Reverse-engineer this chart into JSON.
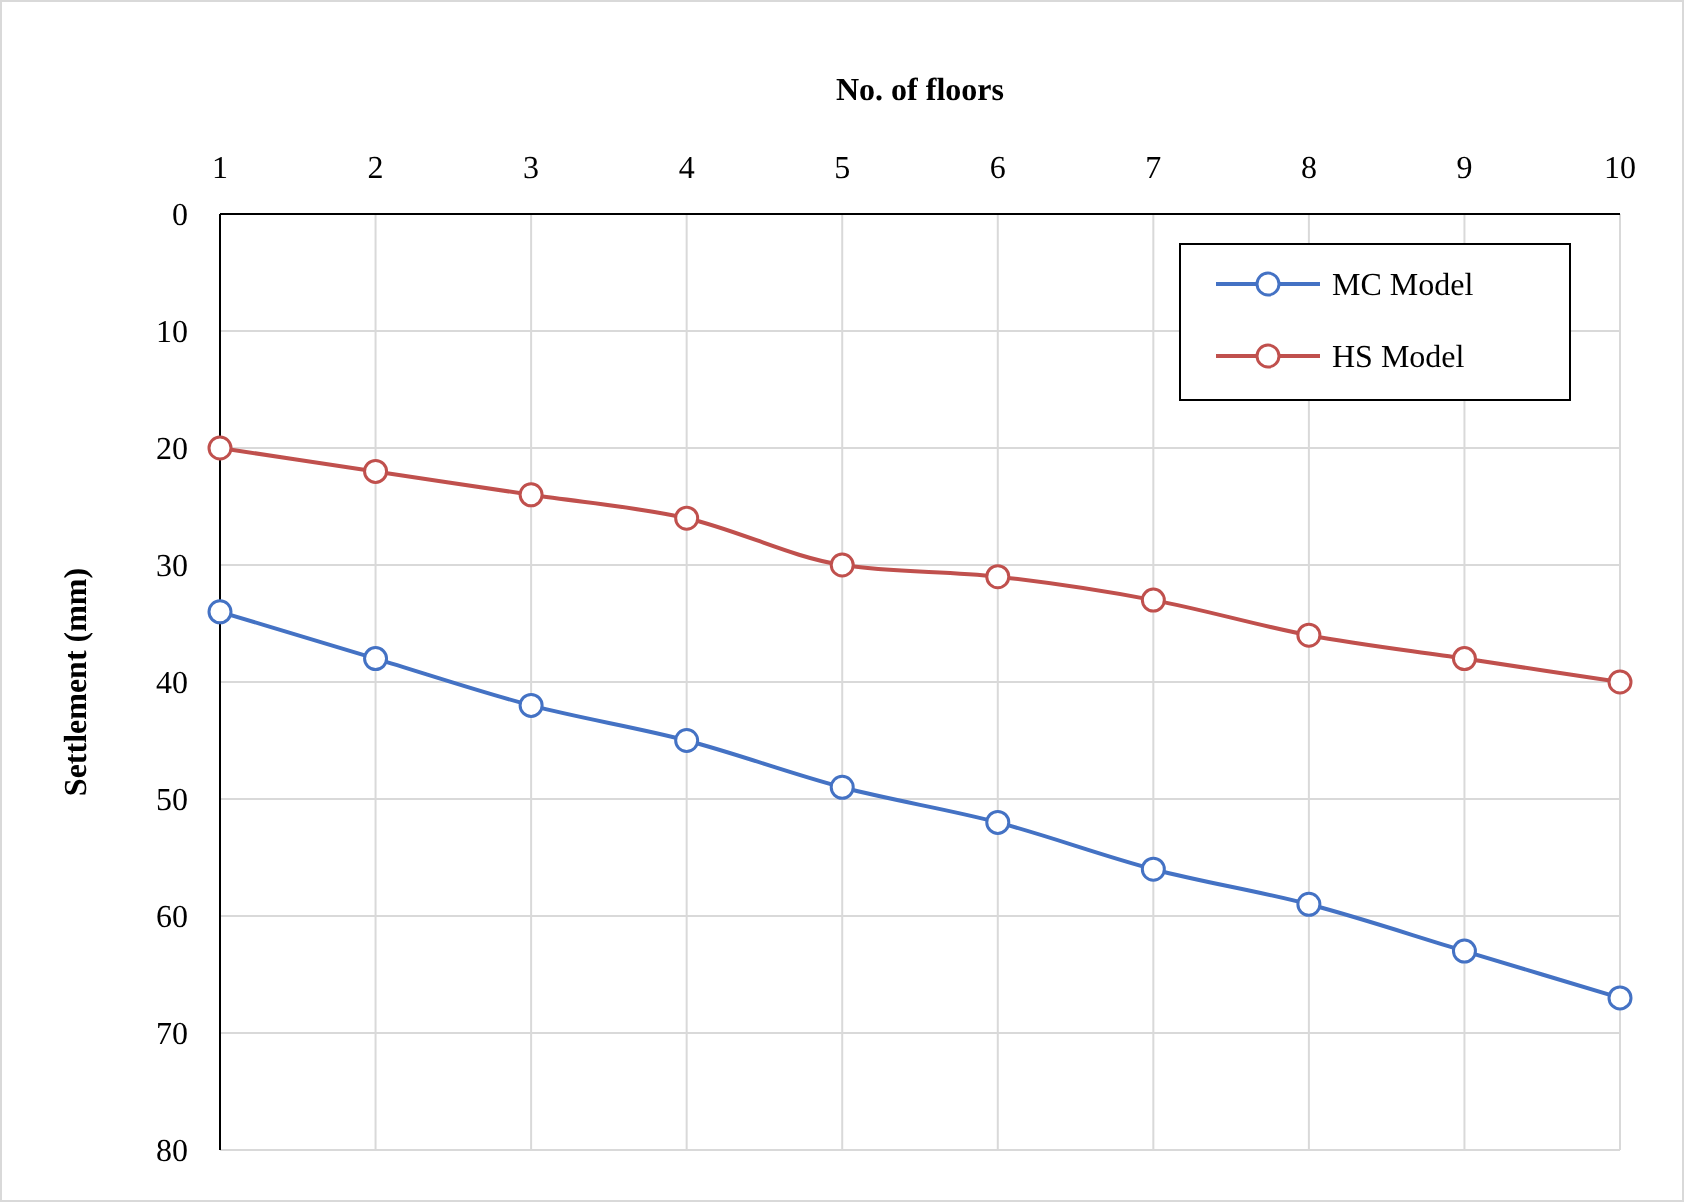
{
  "chart_data": {
    "type": "line",
    "xlabel": "No. of floors",
    "ylabel": "Settlement (mm)",
    "x": [
      1,
      2,
      3,
      4,
      5,
      6,
      7,
      8,
      9,
      10
    ],
    "xlim": [
      1,
      10
    ],
    "xticks": [
      1,
      2,
      3,
      4,
      5,
      6,
      7,
      8,
      9,
      10
    ],
    "ylim": [
      80,
      0
    ],
    "yticks": [
      0,
      10,
      20,
      30,
      40,
      50,
      60,
      70,
      80
    ],
    "grid": true,
    "legend": "top right",
    "marker": "circle",
    "line_style": "solid",
    "series": [
      {
        "name": "MC Model",
        "color": "#4472c4",
        "values": [
          34,
          38,
          42,
          45,
          49,
          52,
          56,
          59,
          63,
          67
        ]
      },
      {
        "name": "HS Model",
        "color": "#c0504d",
        "values": [
          20,
          22,
          24,
          26,
          30,
          31,
          33,
          36,
          38,
          40
        ]
      }
    ]
  }
}
